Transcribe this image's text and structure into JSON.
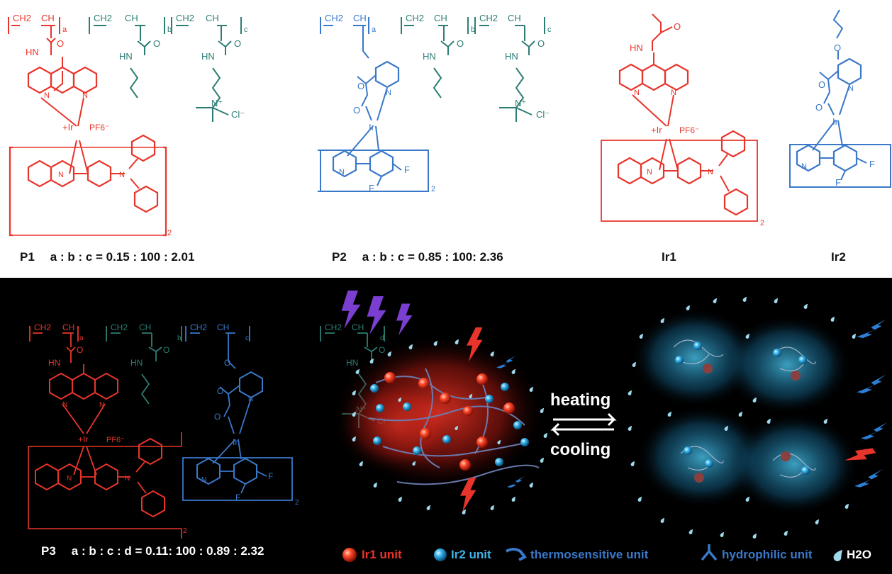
{
  "structures": {
    "p1": {
      "name": "P1",
      "ratio": "a : b : c = 0.15 : 100 : 2.01"
    },
    "p2": {
      "name": "P2",
      "ratio": "a : b : c = 0.85 : 100: 2.36"
    },
    "ir1": {
      "name": "Ir1"
    },
    "ir2": {
      "name": "Ir2"
    },
    "p3": {
      "name": "P3",
      "ratio": "a : b : c : d = 0.11: 100 : 0.89 : 2.32"
    }
  },
  "atoms": {
    "hn": "HN",
    "n": "N",
    "o": "O",
    "f": "F",
    "ir": "Ir",
    "ir_plus": "+Ir",
    "pf6": "PF6⁻",
    "cl": "Cl⁻",
    "n_plus": "N⁺",
    "ch2": "CH2",
    "ch": "CH",
    "a": "a",
    "b": "b",
    "c": "c",
    "d": "d",
    "two": "2"
  },
  "process": {
    "forward": "heating",
    "reverse": "cooling"
  },
  "legend": {
    "ir1_unit": "Ir1 unit",
    "ir2_unit": "Ir2 unit",
    "thermo_unit": "thermosensitive unit",
    "hydro_unit": "hydrophilic unit",
    "water": "H2O"
  },
  "colors": {
    "ir1_red": "#e8352b",
    "ir2_blue": "#3a78c9",
    "teal": "#2e7d74",
    "glow_red": "#ff3b2a",
    "glow_cyan": "#4fd4ff",
    "water": "#9fd9ec",
    "bolt_purple": "#7a3fd0",
    "bolt_blue": "#2d7fd4",
    "bolt_red": "#e8352b"
  }
}
